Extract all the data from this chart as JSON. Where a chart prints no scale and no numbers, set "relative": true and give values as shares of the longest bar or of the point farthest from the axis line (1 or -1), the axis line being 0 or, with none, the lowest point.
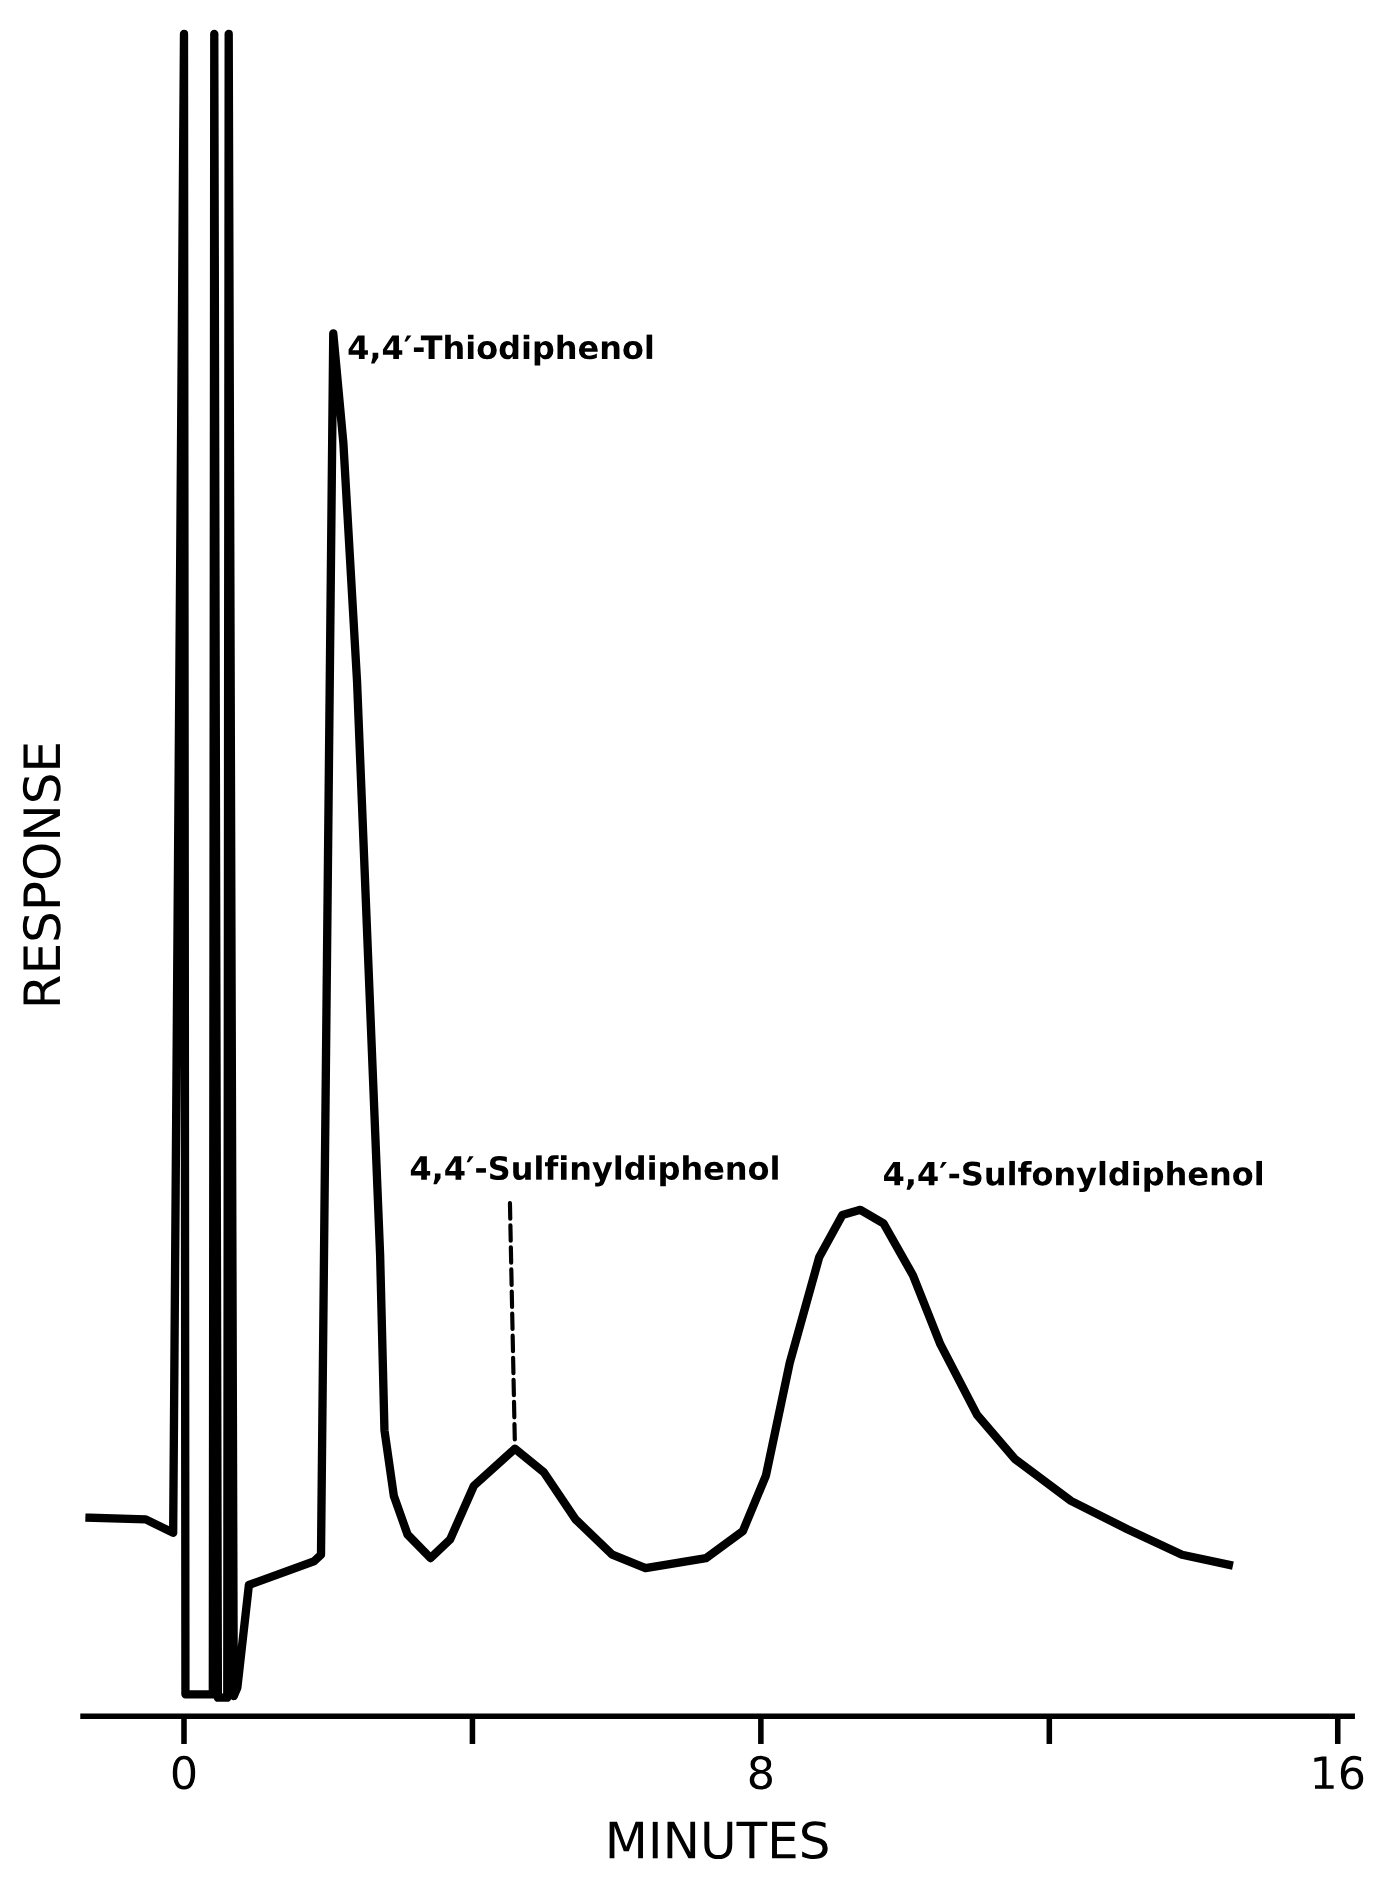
{
  "chart_data": {
    "type": "line",
    "relative": true,
    "xlabel": "MINUTES",
    "ylabel": "RESPONSE",
    "xlim": [
      -1.4,
      16.2
    ],
    "xticks": [
      0,
      {
        "value": 4,
        "label": null
      },
      8,
      {
        "value": 12,
        "label": null
      },
      16
    ],
    "grid": false,
    "legend": false,
    "marker": "none",
    "line_style": "solid",
    "series": [
      {
        "color": "#000000",
        "x": [
          -1.31,
          -0.53,
          -0.15,
          0.0,
          0.02,
          0.4,
          0.42,
          0.47,
          0.6,
          0.62,
          0.69,
          0.74,
          0.9,
          1.8,
          1.9,
          2.07,
          2.21,
          2.4,
          2.56,
          2.72,
          2.78,
          2.91,
          3.1,
          3.42,
          3.69,
          4.02,
          4.59,
          4.99,
          5.43,
          5.94,
          6.4,
          7.24,
          7.75,
          8.07,
          8.4,
          8.81,
          9.13,
          9.38,
          9.7,
          10.11,
          10.49,
          11.0,
          11.52,
          12.3,
          13.09,
          13.84,
          14.49
        ],
        "values": [
          0.118,
          0.117,
          0.109,
          1.0,
          0.013,
          0.013,
          1.0,
          0.011,
          0.011,
          1.0,
          0.012,
          0.017,
          0.078,
          0.092,
          0.096,
          0.822,
          0.757,
          0.615,
          0.444,
          0.274,
          0.17,
          0.131,
          0.108,
          0.094,
          0.105,
          0.137,
          0.159,
          0.145,
          0.117,
          0.096,
          0.088,
          0.094,
          0.11,
          0.143,
          0.21,
          0.273,
          0.298,
          0.301,
          0.293,
          0.262,
          0.221,
          0.179,
          0.153,
          0.128,
          0.111,
          0.096,
          0.09
        ]
      }
    ],
    "annotations": [
      {
        "text": "4,4′-Thiodiphenol",
        "x": 2.07,
        "y": 0.822
      },
      {
        "text": "4,4′-Sulfinyldiphenol",
        "x": 4.59,
        "y": 0.159
      },
      {
        "text": "4,4′-Sulfonyldiphenol",
        "x": 9.38,
        "y": 0.301
      }
    ]
  }
}
